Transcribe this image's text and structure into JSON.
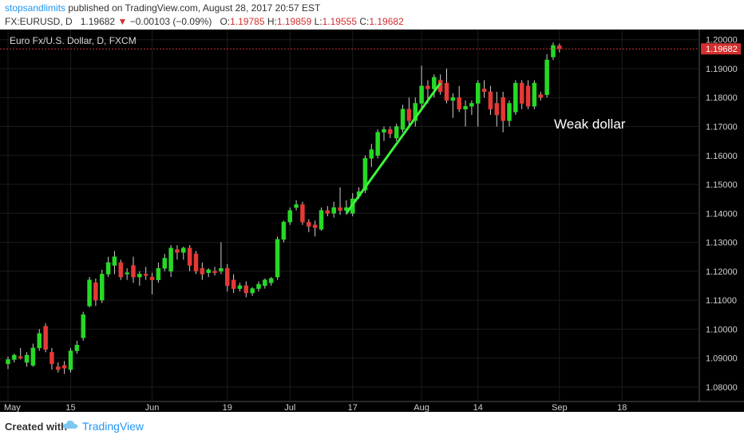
{
  "header": {
    "author": "stopsandlimits",
    "published": "published on TradingView.com, August 28, 2017 20:57 EST",
    "symbol": "FX:EURUSD, D",
    "price": "1.19682",
    "arrow": "▼",
    "change": "−0.00103 (−0.09%)",
    "o_label": "O:",
    "o_val": "1.19785",
    "h_label": "H:",
    "h_val": "1.19859",
    "l_label": "L:",
    "l_val": "1.19555",
    "c_label": "C:",
    "c_val": "1.19682"
  },
  "chart_data": {
    "type": "candlestick",
    "title": "Euro Fx/U.S. Dollar, D, FXCM",
    "annotation": "Weak dollar",
    "last_price_label": "1.19682",
    "last_price": 1.19682,
    "ylim": [
      1.075,
      1.2035
    ],
    "y_ticks": [
      "1.20000",
      "1.19000",
      "1.18000",
      "1.17000",
      "1.16000",
      "1.15000",
      "1.14000",
      "1.13000",
      "1.12000",
      "1.11000",
      "1.10000",
      "1.09000",
      "1.08000"
    ],
    "x_ticks": [
      {
        "label": "May",
        "index": 0
      },
      {
        "label": "15",
        "index": 10
      },
      {
        "label": "Jun",
        "index": 23
      },
      {
        "label": "19",
        "index": 35
      },
      {
        "label": "Jul",
        "index": 45
      },
      {
        "label": "17",
        "index": 55
      },
      {
        "label": "Aug",
        "index": 66
      },
      {
        "label": "14",
        "index": 75
      },
      {
        "label": "Sep",
        "index": 88
      },
      {
        "label": "18",
        "index": 98
      }
    ],
    "trendline": {
      "from": {
        "index": 54,
        "price": 1.14
      },
      "to": {
        "index": 69,
        "price": 1.185
      }
    },
    "candles": [
      {
        "o": 1.088,
        "h": 1.0905,
        "l": 1.0862,
        "c": 1.0895
      },
      {
        "o": 1.0895,
        "h": 1.0915,
        "l": 1.0885,
        "c": 1.091
      },
      {
        "o": 1.0905,
        "h": 1.0935,
        "l": 1.0895,
        "c": 1.09
      },
      {
        "o": 1.0885,
        "h": 1.092,
        "l": 1.087,
        "c": 1.091
      },
      {
        "o": 1.0875,
        "h": 1.095,
        "l": 1.087,
        "c": 1.0935
      },
      {
        "o": 1.0935,
        "h": 1.1,
        "l": 1.0925,
        "c": 1.0985
      },
      {
        "o": 1.101,
        "h": 1.102,
        "l": 1.092,
        "c": 1.093
      },
      {
        "o": 1.092,
        "h": 1.0935,
        "l": 1.086,
        "c": 1.088
      },
      {
        "o": 1.087,
        "h": 1.0885,
        "l": 1.085,
        "c": 1.086
      },
      {
        "o": 1.0875,
        "h": 1.089,
        "l": 1.0845,
        "c": 1.0865
      },
      {
        "o": 1.086,
        "h": 1.0935,
        "l": 1.085,
        "c": 1.0925
      },
      {
        "o": 1.0925,
        "h": 1.096,
        "l": 1.0915,
        "c": 1.0945
      },
      {
        "o": 1.097,
        "h": 1.106,
        "l": 1.096,
        "c": 1.105
      },
      {
        "o": 1.108,
        "h": 1.118,
        "l": 1.1075,
        "c": 1.117
      },
      {
        "o": 1.116,
        "h": 1.1175,
        "l": 1.108,
        "c": 1.11
      },
      {
        "o": 1.11,
        "h": 1.1205,
        "l": 1.109,
        "c": 1.119
      },
      {
        "o": 1.119,
        "h": 1.125,
        "l": 1.118,
        "c": 1.123
      },
      {
        "o": 1.122,
        "h": 1.127,
        "l": 1.119,
        "c": 1.125
      },
      {
        "o": 1.123,
        "h": 1.124,
        "l": 1.117,
        "c": 1.118
      },
      {
        "o": 1.119,
        "h": 1.121,
        "l": 1.117,
        "c": 1.1195
      },
      {
        "o": 1.122,
        "h": 1.125,
        "l": 1.116,
        "c": 1.118
      },
      {
        "o": 1.118,
        "h": 1.12,
        "l": 1.115,
        "c": 1.119
      },
      {
        "o": 1.119,
        "h": 1.1215,
        "l": 1.117,
        "c": 1.1185
      },
      {
        "o": 1.118,
        "h": 1.1195,
        "l": 1.112,
        "c": 1.117
      },
      {
        "o": 1.117,
        "h": 1.123,
        "l": 1.116,
        "c": 1.121
      },
      {
        "o": 1.121,
        "h": 1.126,
        "l": 1.12,
        "c": 1.1245
      },
      {
        "o": 1.12,
        "h": 1.129,
        "l": 1.118,
        "c": 1.128
      },
      {
        "o": 1.1275,
        "h": 1.129,
        "l": 1.124,
        "c": 1.1265
      },
      {
        "o": 1.1265,
        "h": 1.1285,
        "l": 1.124,
        "c": 1.128
      },
      {
        "o": 1.128,
        "h": 1.129,
        "l": 1.12,
        "c": 1.122
      },
      {
        "o": 1.126,
        "h": 1.127,
        "l": 1.119,
        "c": 1.12
      },
      {
        "o": 1.121,
        "h": 1.123,
        "l": 1.117,
        "c": 1.119
      },
      {
        "o": 1.1195,
        "h": 1.121,
        "l": 1.118,
        "c": 1.1205
      },
      {
        "o": 1.12,
        "h": 1.1215,
        "l": 1.1185,
        "c": 1.1195
      },
      {
        "o": 1.12,
        "h": 1.13,
        "l": 1.119,
        "c": 1.121
      },
      {
        "o": 1.121,
        "h": 1.1225,
        "l": 1.113,
        "c": 1.115
      },
      {
        "o": 1.117,
        "h": 1.119,
        "l": 1.1125,
        "c": 1.114
      },
      {
        "o": 1.114,
        "h": 1.116,
        "l": 1.113,
        "c": 1.115
      },
      {
        "o": 1.115,
        "h": 1.1165,
        "l": 1.111,
        "c": 1.1125
      },
      {
        "o": 1.1125,
        "h": 1.1145,
        "l": 1.1115,
        "c": 1.114
      },
      {
        "o": 1.114,
        "h": 1.1165,
        "l": 1.113,
        "c": 1.1155
      },
      {
        "o": 1.115,
        "h": 1.1175,
        "l": 1.114,
        "c": 1.117
      },
      {
        "o": 1.116,
        "h": 1.118,
        "l": 1.115,
        "c": 1.1175
      },
      {
        "o": 1.118,
        "h": 1.132,
        "l": 1.117,
        "c": 1.131
      },
      {
        "o": 1.131,
        "h": 1.1375,
        "l": 1.13,
        "c": 1.137
      },
      {
        "o": 1.137,
        "h": 1.142,
        "l": 1.136,
        "c": 1.141
      },
      {
        "o": 1.142,
        "h": 1.1445,
        "l": 1.141,
        "c": 1.143
      },
      {
        "o": 1.143,
        "h": 1.144,
        "l": 1.136,
        "c": 1.137
      },
      {
        "o": 1.137,
        "h": 1.138,
        "l": 1.1335,
        "c": 1.1355
      },
      {
        "o": 1.136,
        "h": 1.1375,
        "l": 1.132,
        "c": 1.135
      },
      {
        "o": 1.1345,
        "h": 1.142,
        "l": 1.134,
        "c": 1.141
      },
      {
        "o": 1.141,
        "h": 1.1425,
        "l": 1.139,
        "c": 1.14
      },
      {
        "o": 1.14,
        "h": 1.144,
        "l": 1.1385,
        "c": 1.142
      },
      {
        "o": 1.142,
        "h": 1.149,
        "l": 1.1395,
        "c": 1.141
      },
      {
        "o": 1.141,
        "h": 1.1445,
        "l": 1.1395,
        "c": 1.142
      },
      {
        "o": 1.14,
        "h": 1.147,
        "l": 1.139,
        "c": 1.145
      },
      {
        "o": 1.146,
        "h": 1.149,
        "l": 1.145,
        "c": 1.1475
      },
      {
        "o": 1.148,
        "h": 1.16,
        "l": 1.147,
        "c": 1.159
      },
      {
        "o": 1.159,
        "h": 1.164,
        "l": 1.156,
        "c": 1.162
      },
      {
        "o": 1.16,
        "h": 1.169,
        "l": 1.159,
        "c": 1.168
      },
      {
        "o": 1.168,
        "h": 1.17,
        "l": 1.165,
        "c": 1.169
      },
      {
        "o": 1.169,
        "h": 1.17,
        "l": 1.166,
        "c": 1.1675
      },
      {
        "o": 1.166,
        "h": 1.171,
        "l": 1.165,
        "c": 1.17
      },
      {
        "o": 1.169,
        "h": 1.1775,
        "l": 1.168,
        "c": 1.176
      },
      {
        "o": 1.176,
        "h": 1.18,
        "l": 1.17,
        "c": 1.172
      },
      {
        "o": 1.172,
        "h": 1.18,
        "l": 1.17,
        "c": 1.178
      },
      {
        "o": 1.178,
        "h": 1.191,
        "l": 1.176,
        "c": 1.184
      },
      {
        "o": 1.184,
        "h": 1.186,
        "l": 1.178,
        "c": 1.183
      },
      {
        "o": 1.183,
        "h": 1.188,
        "l": 1.18,
        "c": 1.187
      },
      {
        "o": 1.186,
        "h": 1.188,
        "l": 1.181,
        "c": 1.182
      },
      {
        "o": 1.185,
        "h": 1.19,
        "l": 1.178,
        "c": 1.179
      },
      {
        "o": 1.179,
        "h": 1.1815,
        "l": 1.173,
        "c": 1.18
      },
      {
        "o": 1.18,
        "h": 1.184,
        "l": 1.175,
        "c": 1.176
      },
      {
        "o": 1.176,
        "h": 1.179,
        "l": 1.17,
        "c": 1.177
      },
      {
        "o": 1.177,
        "h": 1.179,
        "l": 1.174,
        "c": 1.178
      },
      {
        "o": 1.178,
        "h": 1.186,
        "l": 1.17,
        "c": 1.185
      },
      {
        "o": 1.183,
        "h": 1.186,
        "l": 1.18,
        "c": 1.182
      },
      {
        "o": 1.182,
        "h": 1.184,
        "l": 1.174,
        "c": 1.176
      },
      {
        "o": 1.178,
        "h": 1.182,
        "l": 1.17,
        "c": 1.174
      },
      {
        "o": 1.18,
        "h": 1.182,
        "l": 1.168,
        "c": 1.172
      },
      {
        "o": 1.172,
        "h": 1.179,
        "l": 1.17,
        "c": 1.178
      },
      {
        "o": 1.175,
        "h": 1.186,
        "l": 1.174,
        "c": 1.185
      },
      {
        "o": 1.185,
        "h": 1.186,
        "l": 1.176,
        "c": 1.178
      },
      {
        "o": 1.184,
        "h": 1.186,
        "l": 1.176,
        "c": 1.177
      },
      {
        "o": 1.177,
        "h": 1.186,
        "l": 1.176,
        "c": 1.185
      },
      {
        "o": 1.181,
        "h": 1.182,
        "l": 1.179,
        "c": 1.18
      },
      {
        "o": 1.181,
        "h": 1.195,
        "l": 1.18,
        "c": 1.193
      },
      {
        "o": 1.194,
        "h": 1.199,
        "l": 1.193,
        "c": 1.198
      },
      {
        "o": 1.1979,
        "h": 1.1986,
        "l": 1.1956,
        "c": 1.1968
      }
    ]
  },
  "footer": {
    "created": "Created with",
    "brand": "TradingView"
  },
  "colors": {
    "up": "#26d926",
    "down": "#e53935",
    "trend": "#3df23d",
    "price_line": "#d32f2f"
  }
}
